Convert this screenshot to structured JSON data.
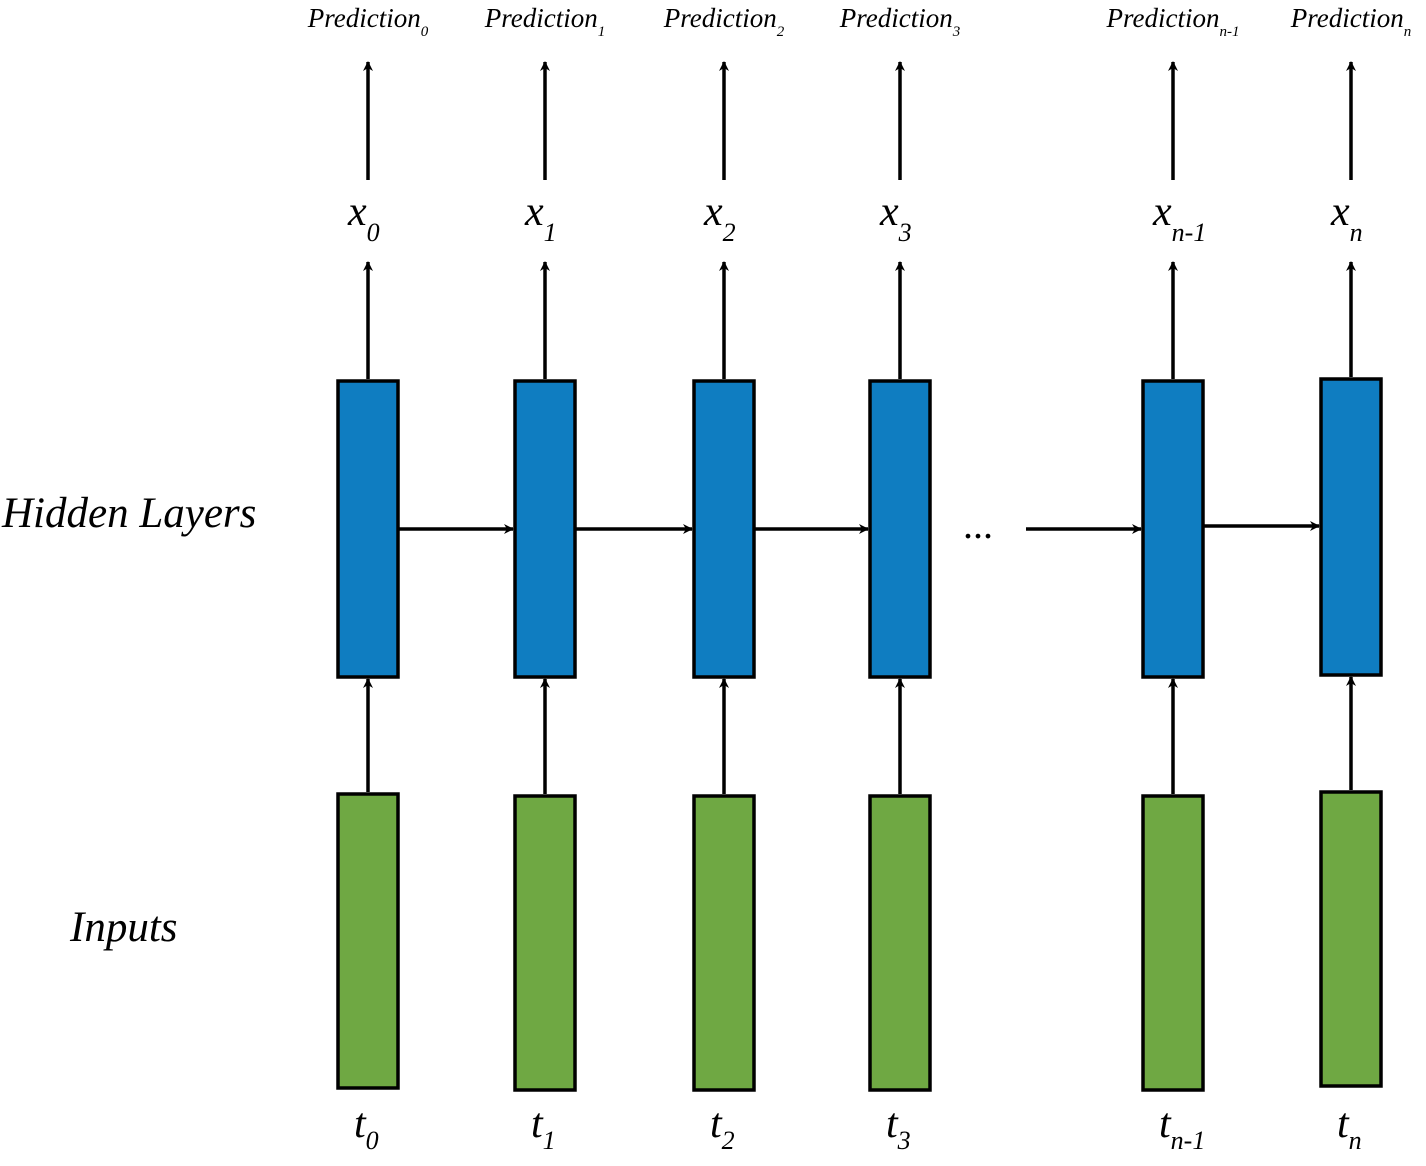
{
  "labels": {
    "hidden": "Hidden Layers",
    "inputs": "Inputs",
    "ellipsis": "..."
  },
  "colors": {
    "hidden_fill": "#0f7dc1",
    "input_fill": "#6fa843",
    "stroke": "#000000"
  },
  "columns": [
    {
      "pred": "Prediction",
      "pred_sub": "0",
      "x": "x",
      "x_sub": "0",
      "t": "t",
      "t_sub": "0"
    },
    {
      "pred": "Prediction",
      "pred_sub": "1",
      "x": "x",
      "x_sub": "1",
      "t": "t",
      "t_sub": "1"
    },
    {
      "pred": "Prediction",
      "pred_sub": "2",
      "x": "x",
      "x_sub": "2",
      "t": "t",
      "t_sub": "2"
    },
    {
      "pred": "Prediction",
      "pred_sub": "3",
      "x": "x",
      "x_sub": "3",
      "t": "t",
      "t_sub": "3"
    },
    {
      "pred": "Prediction",
      "pred_sub": "n-1",
      "x": "x",
      "x_sub": "n-1",
      "t": "t",
      "t_sub": "n-1"
    },
    {
      "pred": "Prediction",
      "pred_sub": "n",
      "x": "x",
      "x_sub": "n",
      "t": "t",
      "t_sub": "n"
    }
  ]
}
